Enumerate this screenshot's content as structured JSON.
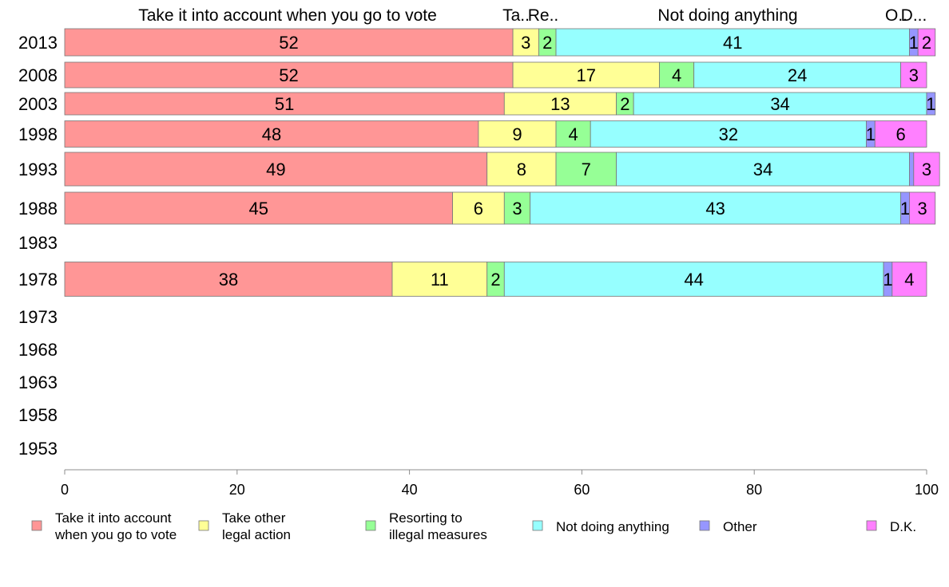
{
  "chart_data": {
    "type": "bar",
    "orientation": "horizontal",
    "stacked": true,
    "categories": [
      "2013",
      "2008",
      "2003",
      "1998",
      "1993",
      "1988",
      "1983",
      "1978",
      "1973",
      "1968",
      "1963",
      "1958",
      "1953"
    ],
    "top_labels": [
      "Take it into account when you go to vote",
      "Ta..",
      "Re..",
      "Not doing anything",
      "O..",
      "D..."
    ],
    "series": [
      {
        "name": "Take it into account when you go to vote",
        "legend_lines": [
          "Take it into account",
          "when you go to vote"
        ],
        "color": "#ff9696",
        "values": [
          52,
          52,
          51,
          48,
          49,
          45,
          null,
          38,
          null,
          null,
          null,
          null,
          null
        ]
      },
      {
        "name": "Take other legal action",
        "legend_lines": [
          "Take other",
          "legal action"
        ],
        "color": "#ffff96",
        "values": [
          3,
          17,
          13,
          9,
          8,
          6,
          null,
          11,
          null,
          null,
          null,
          null,
          null
        ]
      },
      {
        "name": "Resorting to illegal measures",
        "legend_lines": [
          "Resorting to",
          "illegal measures"
        ],
        "color": "#96ff96",
        "values": [
          2,
          4,
          2,
          4,
          7,
          3,
          null,
          2,
          null,
          null,
          null,
          null,
          null
        ]
      },
      {
        "name": "Not doing anything",
        "legend_lines": [
          "Not doing anything"
        ],
        "color": "#96ffff",
        "values": [
          41,
          24,
          34,
          32,
          34,
          43,
          null,
          44,
          null,
          null,
          null,
          null,
          null
        ]
      },
      {
        "name": "Other",
        "legend_lines": [
          "Other"
        ],
        "color": "#9696ff",
        "values": [
          1,
          0,
          1,
          1,
          0.5,
          1,
          null,
          1,
          null,
          null,
          null,
          null,
          null
        ]
      },
      {
        "name": "D.K.",
        "legend_lines": [
          "D.K."
        ],
        "color": "#ff80ff",
        "values": [
          2,
          3,
          0,
          6,
          3,
          3,
          null,
          4,
          null,
          null,
          null,
          null,
          null
        ]
      }
    ],
    "data_labels": [
      [
        "52",
        "3",
        "2",
        "41",
        "1",
        "2"
      ],
      [
        "52",
        "17",
        "4",
        "24",
        "",
        "3"
      ],
      [
        "51",
        "13",
        "2",
        "34",
        "1",
        ""
      ],
      [
        "48",
        "9",
        "4",
        "32",
        "1",
        "6"
      ],
      [
        "49",
        "8",
        "7",
        "34",
        "",
        "3"
      ],
      [
        "45",
        "6",
        "3",
        "43",
        "1",
        "3"
      ],
      [
        "",
        "",
        "",
        "",
        "",
        ""
      ],
      [
        "38",
        "11",
        "2",
        "44",
        "1",
        "4"
      ],
      [
        "",
        "",
        "",
        "",
        "",
        ""
      ],
      [
        "",
        "",
        "",
        "",
        "",
        ""
      ],
      [
        "",
        "",
        "",
        "",
        "",
        ""
      ],
      [
        "",
        "",
        "",
        "",
        "",
        ""
      ],
      [
        "",
        "",
        "",
        "",
        "",
        ""
      ]
    ],
    "xlim": [
      0,
      100
    ],
    "xticks": [
      "0",
      "20",
      "40",
      "60",
      "80",
      "100"
    ],
    "xlabel": "",
    "ylabel": "",
    "grid": false,
    "legend_position": "bottom"
  }
}
